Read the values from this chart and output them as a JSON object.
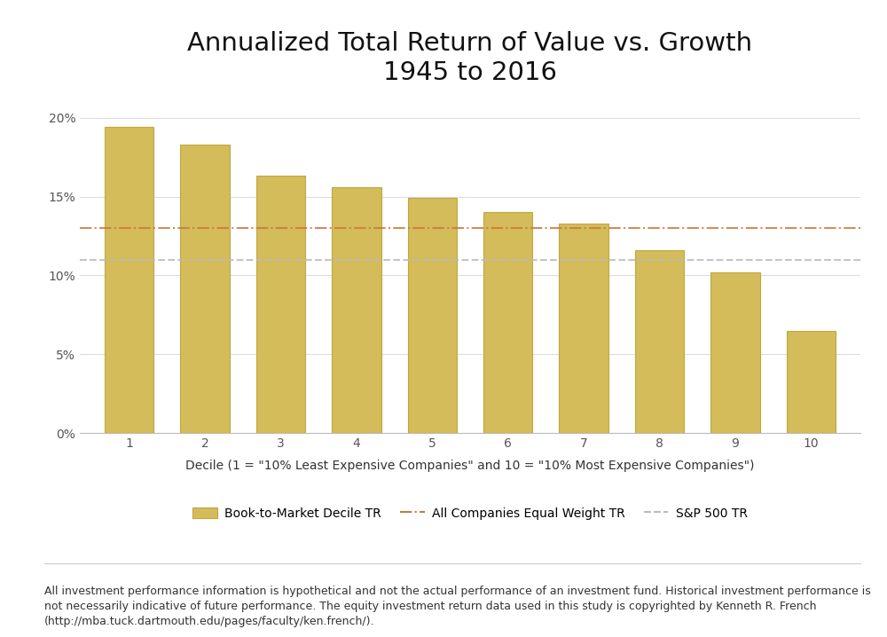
{
  "title": "Annualized Total Return of Value vs. Growth\n1945 to 2016",
  "categories": [
    1,
    2,
    3,
    4,
    5,
    6,
    7,
    8,
    9,
    10
  ],
  "values": [
    0.194,
    0.183,
    0.163,
    0.156,
    0.149,
    0.14,
    0.133,
    0.116,
    0.102,
    0.065
  ],
  "bar_color": "#D4BC5A",
  "bar_edgecolor": "#C0A840",
  "all_companies_line": 0.13,
  "sp500_line": 0.11,
  "all_companies_color": "#C87941",
  "sp500_color": "#BBBBBB",
  "xlabel": "Decile (1 = \"10% Least Expensive Companies\" and 10 = \"10% Most Expensive Companies\")",
  "ylim": [
    0,
    0.21
  ],
  "yticks": [
    0,
    0.05,
    0.1,
    0.15,
    0.2
  ],
  "ytick_labels": [
    "0%",
    "5%",
    "10%",
    "15%",
    "20%"
  ],
  "legend_bar_label": "Book-to-Market Decile TR",
  "legend_line1_label": "All Companies Equal Weight TR",
  "legend_line2_label": "S&P 500 TR",
  "footnote": "All investment performance information is hypothetical and not the actual performance of an investment fund. Historical investment performance is\nnot necessarily indicative of future performance. The equity investment return data used in this study is copyrighted by Kenneth R. French\n(http://mba.tuck.dartmouth.edu/pages/faculty/ken.french/).",
  "title_fontsize": 21,
  "xlabel_fontsize": 10,
  "tick_fontsize": 10,
  "legend_fontsize": 10,
  "footnote_fontsize": 9,
  "background_color": "#FFFFFF",
  "grid_color": "#DDDDDD"
}
